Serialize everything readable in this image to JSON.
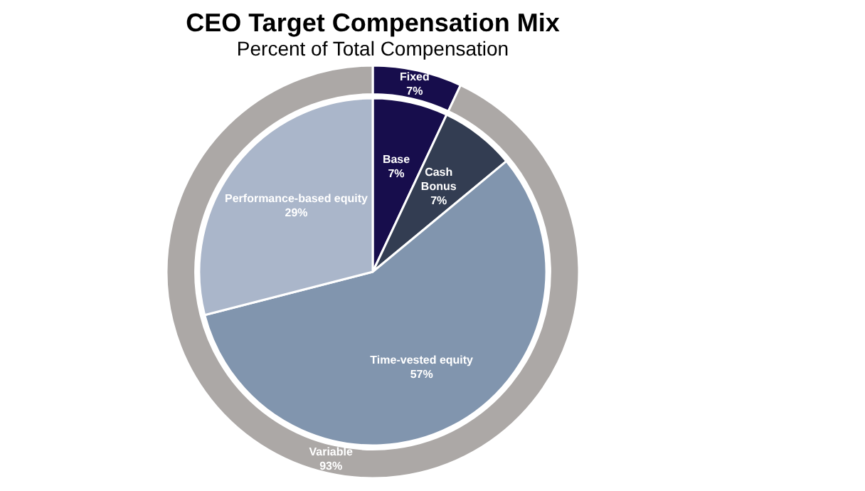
{
  "chart_data": [
    {
      "type": "donut",
      "title": "CEO Target Compensation Mix",
      "subtitle": "Percent of Total Compensation",
      "categories": [
        "Fixed",
        "Variable"
      ],
      "values": [
        7,
        93
      ],
      "colors": [
        "#170d4c",
        "#aca8a6"
      ],
      "value_labels": [
        "7%",
        "93%"
      ]
    },
    {
      "type": "pie",
      "categories": [
        "Base",
        "Cash Bonus",
        "Time-vested equity",
        "Performance-based equity"
      ],
      "values": [
        7,
        7,
        57,
        29
      ],
      "colors": [
        "#170d4c",
        "#333d52",
        "#8195ae",
        "#aab6ca"
      ],
      "value_labels": [
        "7%",
        "7%",
        "57%",
        "29%"
      ]
    }
  ]
}
